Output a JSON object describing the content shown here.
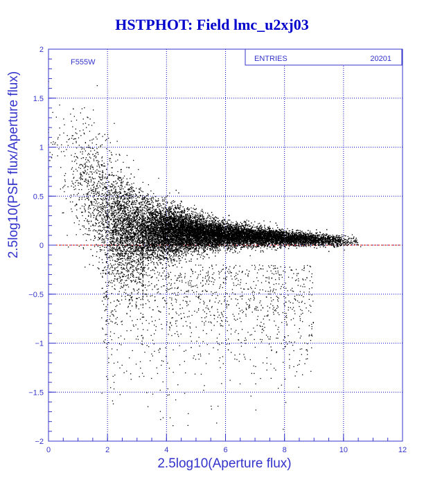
{
  "colors": {
    "title": "#0000cc",
    "axis": "#3333cc",
    "grid": "#0000cc",
    "reference_line": "#cc0000",
    "points": "#000000"
  },
  "chart_data": {
    "type": "scatter",
    "title": "HSTPHOT: Field lmc_u2xj03",
    "filter_label": "F555W",
    "stats": {
      "label": "ENTRIES",
      "value": "20201"
    },
    "xlabel": "2.5log10(Aperture flux)",
    "ylabel": "2.5log10(PSF flux/Aperture flux)",
    "xlim": [
      0,
      12
    ],
    "ylim": [
      -2,
      2
    ],
    "grid": true,
    "x_ticks": [
      "0",
      "2",
      "4",
      "6",
      "8",
      "10",
      "12"
    ],
    "y_ticks": [
      "-2",
      "-1.5",
      "-1",
      "-0.5",
      "0",
      "0.5",
      "1",
      "1.5",
      "2"
    ],
    "reference_line_y": 0,
    "points_shown": 20201
  }
}
